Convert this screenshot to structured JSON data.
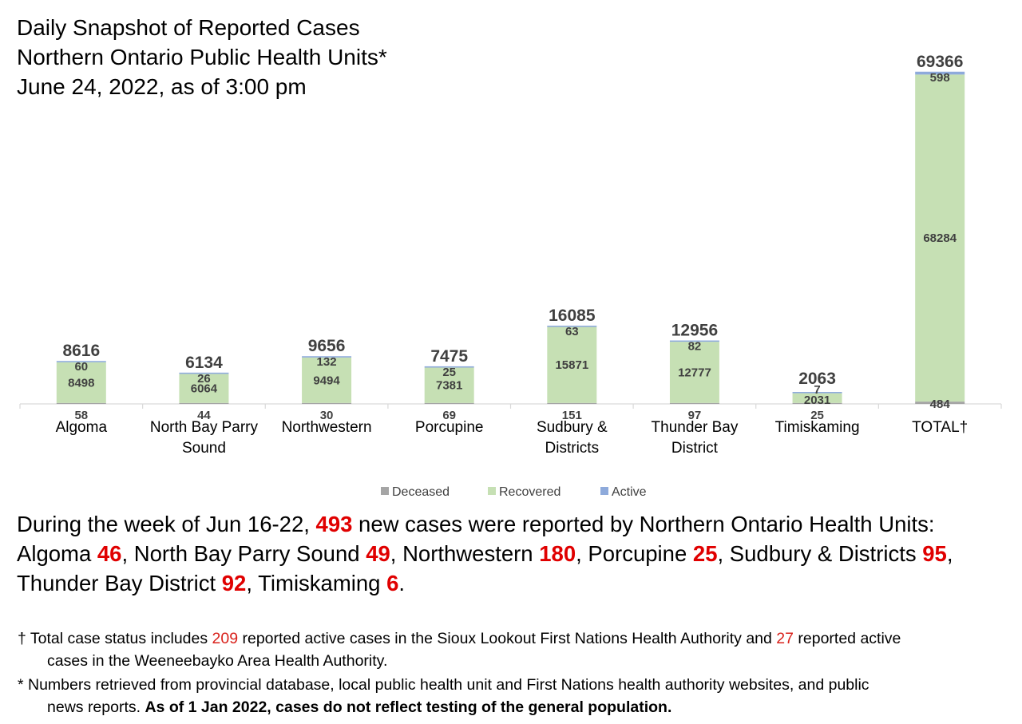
{
  "title": {
    "line1": "Daily Snapshot of Reported Cases",
    "line2": "Northern Ontario Public Health Units*",
    "line3": "June 24, 2022, as of 3:00 pm"
  },
  "chart_data": {
    "type": "bar",
    "stacked": true,
    "categories": [
      [
        "Algoma"
      ],
      [
        "North Bay Parry",
        "Sound"
      ],
      [
        "Northwestern"
      ],
      [
        "Porcupine"
      ],
      [
        "Sudbury &",
        "Districts"
      ],
      [
        "Thunder Bay",
        "District"
      ],
      [
        "Timiskaming"
      ],
      [
        "TOTAL†"
      ]
    ],
    "series": [
      {
        "name": "Deceased",
        "color": "#a5a5a5",
        "values": [
          58,
          44,
          30,
          69,
          151,
          97,
          25,
          484
        ]
      },
      {
        "name": "Recovered",
        "color": "#c6e0b4",
        "values": [
          8498,
          6064,
          9494,
          7381,
          15871,
          12777,
          2031,
          68284
        ]
      },
      {
        "name": "Active",
        "color": "#8eaadb",
        "values": [
          60,
          26,
          132,
          25,
          63,
          82,
          7,
          598
        ]
      }
    ],
    "totals": [
      8616,
      6134,
      9656,
      7475,
      16085,
      12956,
      2063,
      69366
    ],
    "ylim": [
      0,
      72000
    ],
    "grid": false,
    "legend": "bottom"
  },
  "summary": {
    "part1": "During the week of Jun 16-22, ",
    "total": "493",
    "part2": " new cases were reported by Northern Ontario Health Units:",
    "items": [
      {
        "name": "Algoma ",
        "value": "46",
        "sep": ", "
      },
      {
        "name": "North Bay Parry Sound ",
        "value": "49",
        "sep": ", "
      },
      {
        "name": "Northwestern ",
        "value": "180",
        "sep": ", "
      },
      {
        "name": "Porcupine ",
        "value": "25",
        "sep": ", "
      },
      {
        "name": "Sudbury & Districts ",
        "value": "95",
        "sep": ","
      },
      {
        "name": "Thunder Bay District ",
        "value": "92",
        "sep": ", "
      },
      {
        "name": "Timiskaming ",
        "value": "6",
        "sep": "."
      }
    ]
  },
  "notes": {
    "note1": {
      "a": "† Total case status includes ",
      "n1": "209",
      "b": " reported active cases in the Sioux Lookout First Nations Health Authority and ",
      "n2": "27",
      "c": " reported active",
      "line2": "cases in the Weeneebayko Area Health Authority."
    },
    "note2": {
      "line1": "* Numbers retrieved from provincial database, local public health unit and First Nations health authority websites, and public",
      "line2a": "news reports. ",
      "line2b": "As of 1 Jan 2022, cases do not reflect testing of the general population."
    }
  }
}
